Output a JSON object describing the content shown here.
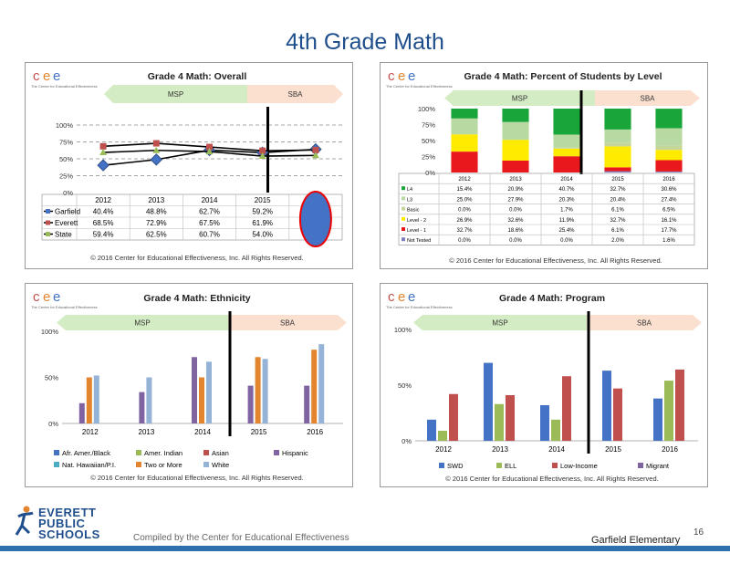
{
  "page_title": "4th Grade Math",
  "logo": {
    "letters": [
      "c",
      "e",
      "e"
    ],
    "tagline": "The Center for Educational Effectiveness"
  },
  "copyright": "© 2016 Center for Educational Effectiveness, Inc. All Rights Reserved.",
  "bands": {
    "left": "MSP",
    "right": "SBA"
  },
  "footer": {
    "compiled_by": "Compiled by the Center for Educational Effectiveness",
    "school": "Garfield Elementary",
    "page_number": "16",
    "district_lines": [
      "EVERETT",
      "PUBLIC",
      "SCHOOLS"
    ]
  },
  "colors": {
    "title": "#1f4e8c",
    "msp_band": "#d4ecc4",
    "sba_band": "#fbe0d0",
    "rule": "#2e6fae"
  },
  "chart_data": [
    {
      "type": "line",
      "title": "Grade 4 Math: Overall",
      "x": [
        "2012",
        "2013",
        "2014",
        "2015",
        ""
      ],
      "ylim": [
        0,
        100
      ],
      "yticks": [
        "0%",
        "25%",
        "50%",
        "75%",
        "100%"
      ],
      "series": [
        {
          "name": "Garfield",
          "values": [
            40.4,
            48.8,
            62.7,
            59.2,
            64.0
          ],
          "labels": [
            "40.4%",
            "48.8%",
            "62.7%",
            "59.2%",
            ""
          ],
          "color": "#4472c4",
          "marker": "diamond"
        },
        {
          "name": "Everett",
          "values": [
            68.5,
            72.9,
            67.5,
            61.9,
            63.0
          ],
          "labels": [
            "68.5%",
            "72.9%",
            "67.5%",
            "61.9%",
            ""
          ],
          "color": "#c0504d",
          "marker": "square"
        },
        {
          "name": "State",
          "values": [
            59.4,
            62.5,
            60.7,
            54.0,
            55.0
          ],
          "labels": [
            "59.4%",
            "62.5%",
            "60.7%",
            "54.0%",
            ""
          ],
          "color": "#9bbb59",
          "marker": "triangle"
        }
      ],
      "annotation": {
        "shape": "ellipse",
        "color": "#4472c4",
        "column": 5
      }
    },
    {
      "type": "bar",
      "stacked": true,
      "title": "Grade 4 Math: Percent of Students by Level",
      "categories": [
        "2012",
        "2013",
        "2014",
        "2015",
        "2016"
      ],
      "ylim": [
        0,
        100
      ],
      "yticks": [
        "0%",
        "25%",
        "50%",
        "75%",
        "100%"
      ],
      "series": [
        {
          "name": "Not Tested",
          "values": [
            0.0,
            0.0,
            0.0,
            2.0,
            1.6
          ],
          "labels": [
            "0.0%",
            "0.0%",
            "0.0%",
            "2.0%",
            "1.6%"
          ],
          "color": "#7f7fbf"
        },
        {
          "name": "Level - 1",
          "values": [
            32.7,
            18.6,
            25.4,
            6.1,
            17.7
          ],
          "labels": [
            "32.7%",
            "18.6%",
            "25.4%",
            "6.1%",
            "17.7%"
          ],
          "color": "#e8181c"
        },
        {
          "name": "Level - 2",
          "values": [
            26.9,
            32.6,
            11.9,
            32.7,
            16.1
          ],
          "labels": [
            "26.9%",
            "32.6%",
            "11.9%",
            "32.7%",
            "16.1%"
          ],
          "color": "#ffeb00"
        },
        {
          "name": "Basic",
          "values": [
            0.0,
            0.0,
            1.7,
            6.1,
            6.5
          ],
          "labels": [
            "0.0%",
            "0.0%",
            "1.7%",
            "6.1%",
            "6.5%"
          ],
          "color": "#c6d69a"
        },
        {
          "name": "L3",
          "values": [
            25.0,
            27.9,
            20.3,
            20.4,
            27.4
          ],
          "labels": [
            "25.0%",
            "27.9%",
            "20.3%",
            "20.4%",
            "27.4%"
          ],
          "color": "#b9d9a2"
        },
        {
          "name": "L4",
          "values": [
            15.4,
            20.9,
            40.7,
            32.7,
            30.6
          ],
          "labels": [
            "15.4%",
            "20.9%",
            "40.7%",
            "32.7%",
            "30.6%"
          ],
          "color": "#1aa53a"
        }
      ],
      "table_order": [
        "L4",
        "L3",
        "Basic",
        "Level - 2",
        "Level - 1",
        "Not Tested"
      ]
    },
    {
      "type": "bar",
      "title": "Grade 4 Math: Ethnicity",
      "categories": [
        "2012",
        "2013",
        "2014",
        "2015",
        "2016"
      ],
      "ylim": [
        0,
        100
      ],
      "yticks": [
        "0%",
        "50%",
        "100%"
      ],
      "series": [
        {
          "name": "Afr. Amer./Black",
          "values": [
            null,
            null,
            null,
            null,
            null
          ],
          "color": "#4472c4"
        },
        {
          "name": "Amer. Indian",
          "values": [
            null,
            null,
            null,
            null,
            null
          ],
          "color": "#9bbb59"
        },
        {
          "name": "Asian",
          "values": [
            null,
            null,
            null,
            null,
            null
          ],
          "color": "#c0504d"
        },
        {
          "name": "Hispanic",
          "values": [
            22,
            34,
            72,
            41,
            41
          ],
          "color": "#8064a2"
        },
        {
          "name": "Nat. Hawaiian/P.I.",
          "values": [
            null,
            null,
            null,
            null,
            null
          ],
          "color": "#4bacc6"
        },
        {
          "name": "Two or More",
          "values": [
            50,
            null,
            50,
            72,
            80
          ],
          "color": "#e3852e"
        },
        {
          "name": "White",
          "values": [
            52,
            50,
            67,
            70,
            86
          ],
          "color": "#95b3d7"
        }
      ]
    },
    {
      "type": "bar",
      "title": "Grade 4 Math: Program",
      "categories": [
        "2012",
        "2013",
        "2014",
        "2015",
        "2016"
      ],
      "ylim": [
        0,
        100
      ],
      "yticks": [
        "0%",
        "50%",
        "100%"
      ],
      "series": [
        {
          "name": "SWD",
          "values": [
            19,
            70,
            32,
            63,
            38
          ],
          "color": "#4472c4"
        },
        {
          "name": "ELL",
          "values": [
            9,
            33,
            19,
            null,
            54
          ],
          "color": "#9bbb59"
        },
        {
          "name": "Low-Income",
          "values": [
            42,
            41,
            58,
            47,
            64
          ],
          "color": "#c0504d"
        },
        {
          "name": "Migrant",
          "values": [
            null,
            null,
            null,
            null,
            null
          ],
          "color": "#8064a2"
        }
      ]
    }
  ]
}
